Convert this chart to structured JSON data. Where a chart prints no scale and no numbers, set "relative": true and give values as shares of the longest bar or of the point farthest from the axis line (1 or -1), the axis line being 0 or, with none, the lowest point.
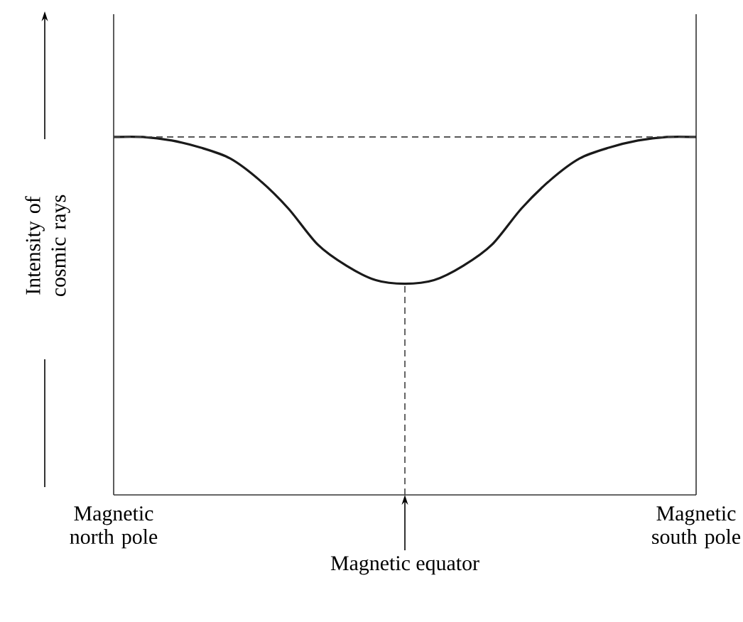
{
  "chart_data": {
    "type": "line",
    "relative": true,
    "ylabel": "Intensity of cosmic rays",
    "categories": [
      "Magnetic north pole",
      null,
      null,
      null,
      null,
      null,
      null,
      null,
      null,
      null,
      null,
      null,
      null,
      null,
      null,
      null,
      null,
      null,
      null,
      null,
      "Magnetic south pole"
    ],
    "values": [
      1,
      1.0,
      0.99,
      0.97,
      0.94,
      0.88,
      0.8,
      0.7,
      0.64,
      0.6,
      0.59,
      0.6,
      0.64,
      0.7,
      0.8,
      0.88,
      0.94,
      0.97,
      0.99,
      1.0,
      1
    ],
    "color": "#1a1a1a",
    "annotations": [
      "Magnetic equator"
    ],
    "ref_lines": [
      {
        "axis": "y",
        "value": 1,
        "line_style": "dashed"
      }
    ]
  }
}
